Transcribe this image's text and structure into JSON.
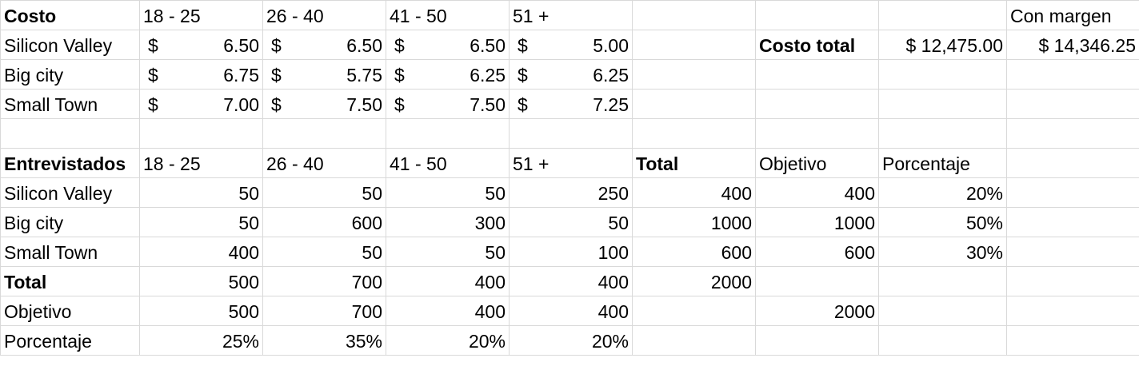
{
  "cost_table": {
    "header": [
      "Costo",
      "18 - 25",
      "26 - 40",
      "41 - 50",
      "51 +"
    ],
    "currency_symbol": "$",
    "rows": [
      {
        "label": "Silicon Valley",
        "values": [
          "6.50",
          "6.50",
          "6.50",
          "5.00"
        ]
      },
      {
        "label": "Big city",
        "values": [
          "6.75",
          "5.75",
          "6.25",
          "6.25"
        ]
      },
      {
        "label": "Small Town",
        "values": [
          "7.00",
          "7.50",
          "7.50",
          "7.25"
        ]
      }
    ],
    "total_label": "Costo total",
    "total_value": "$ 12,475.00",
    "margin_label": "Con margen",
    "margin_value": "$ 14,346.25"
  },
  "interview_table": {
    "header": [
      "Entrevistados",
      "18 - 25",
      "26 - 40",
      "41 - 50",
      "51 +",
      "Total",
      "Objetivo",
      "Porcentaje"
    ],
    "rows": [
      {
        "label": "Silicon Valley",
        "values": [
          "50",
          "50",
          "50",
          "250"
        ],
        "total": "400",
        "objetivo": "400",
        "porcentaje": "20%"
      },
      {
        "label": "Big city",
        "values": [
          "50",
          "600",
          "300",
          "50"
        ],
        "total": "1000",
        "objetivo": "1000",
        "porcentaje": "50%"
      },
      {
        "label": "Small Town",
        "values": [
          "400",
          "50",
          "50",
          "100"
        ],
        "total": "600",
        "objetivo": "600",
        "porcentaje": "30%"
      }
    ],
    "total_row": {
      "label": "Total",
      "values": [
        "500",
        "700",
        "400",
        "400"
      ],
      "total": "2000"
    },
    "objetivo_row": {
      "label": "Objetivo",
      "values": [
        "500",
        "700",
        "400",
        "400"
      ],
      "objetivo": "2000"
    },
    "porcentaje_row": {
      "label": "Porcentaje",
      "values": [
        "25%",
        "35%",
        "20%",
        "20%"
      ]
    }
  }
}
